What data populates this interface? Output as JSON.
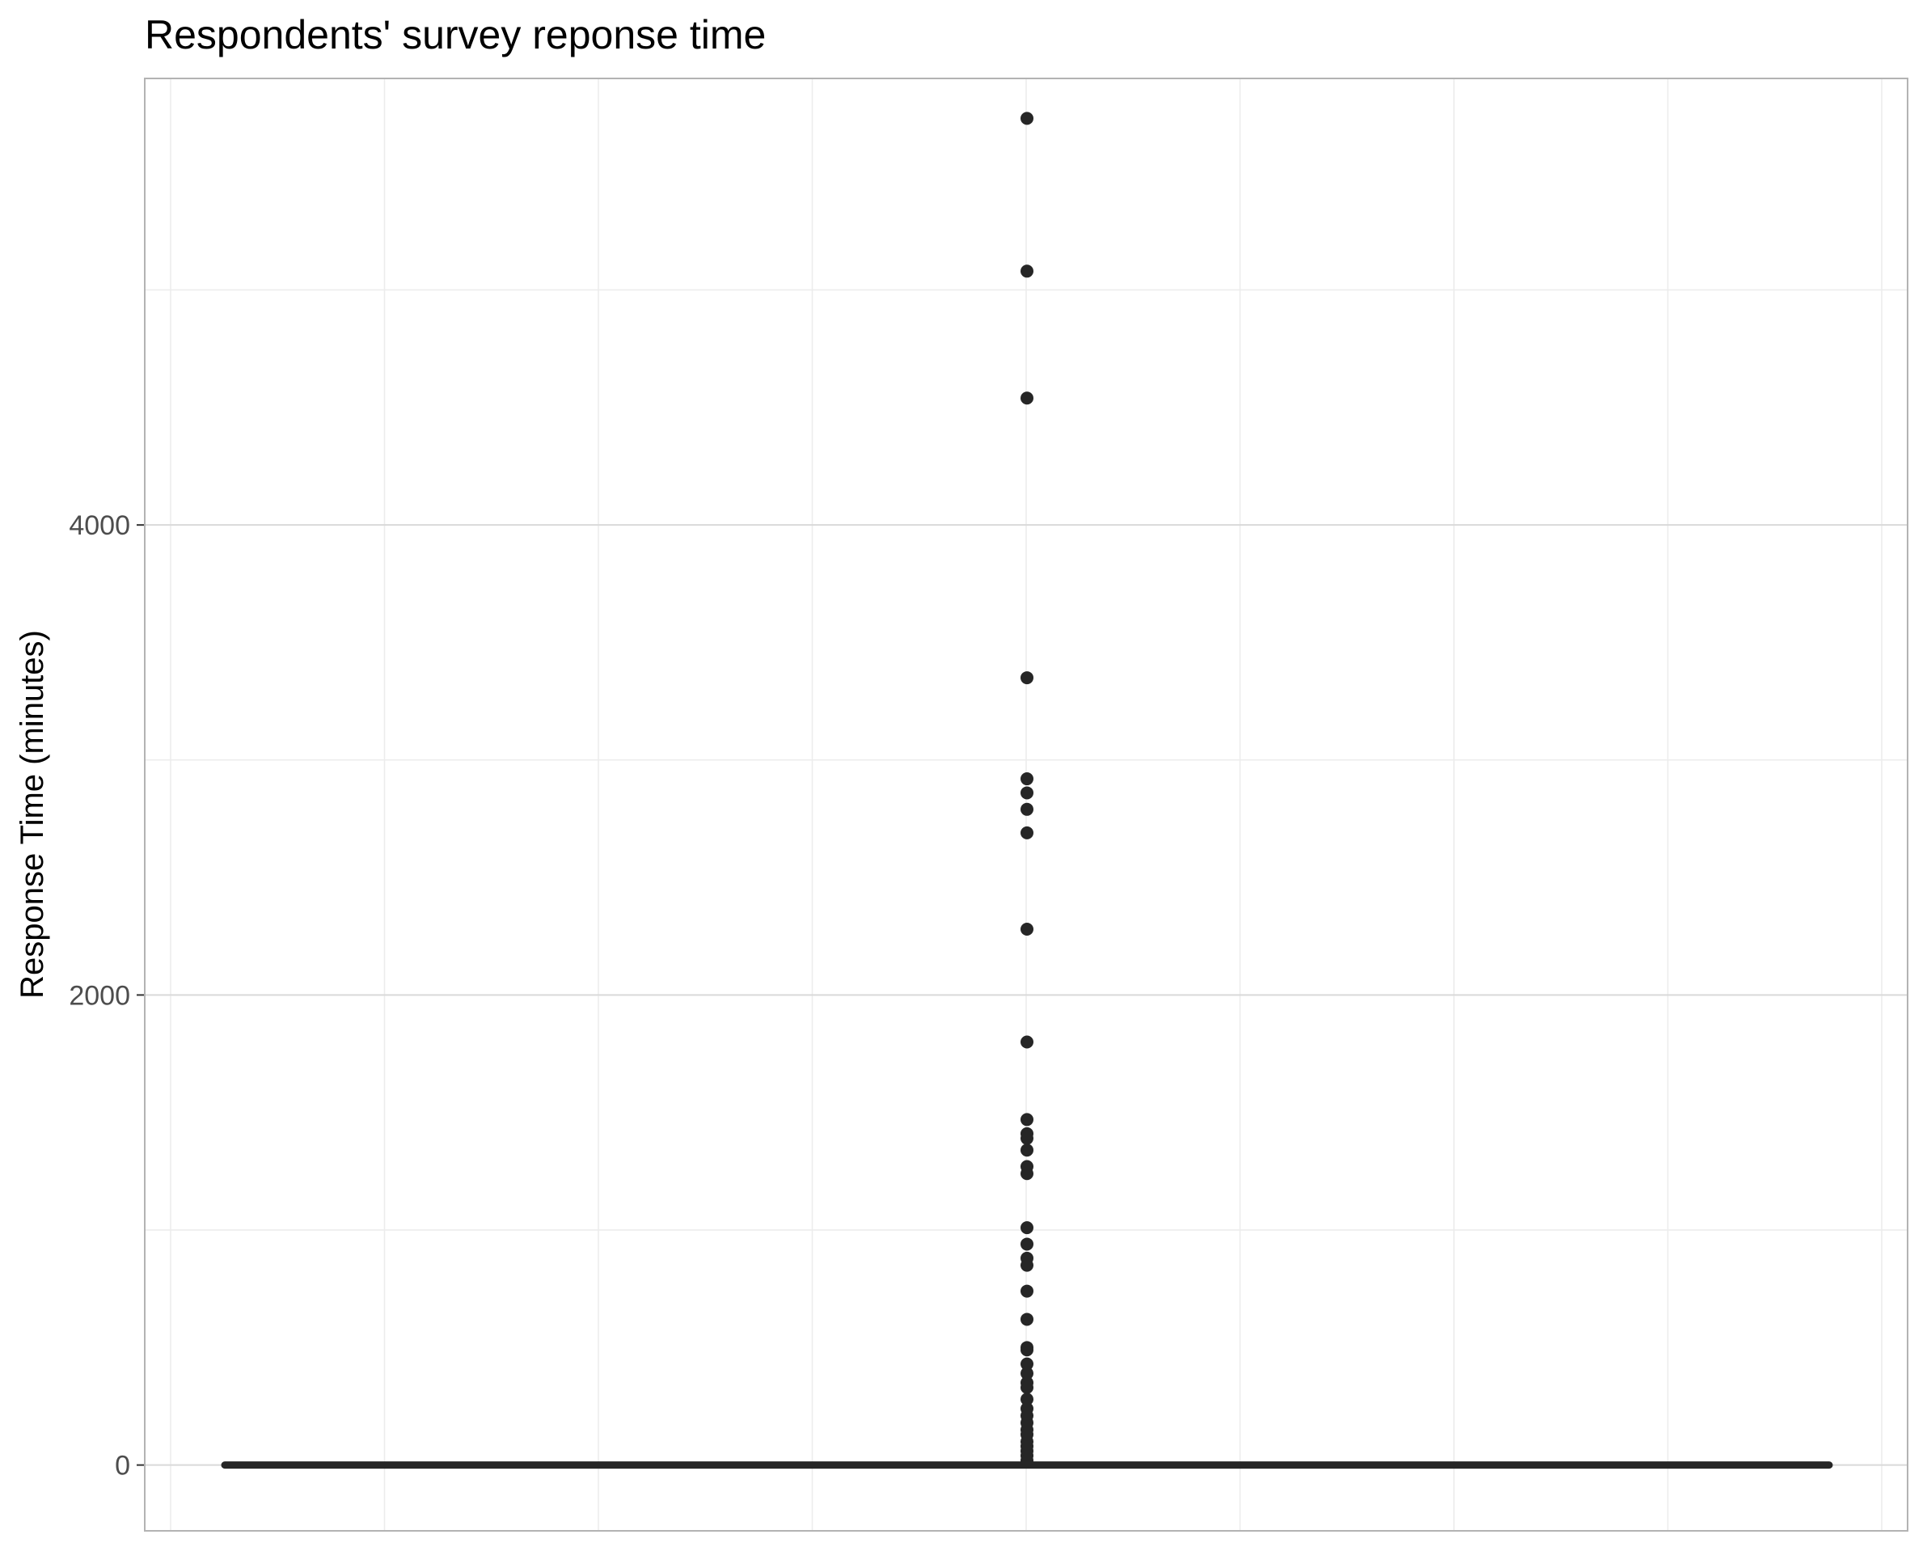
{
  "chart_data": {
    "type": "box",
    "title": "Respondents' survey reponse time",
    "xlabel": "",
    "ylabel": "Response Time (minutes)",
    "ylim": [
      -280,
      5900
    ],
    "y_ticks": [
      {
        "value": 0,
        "label": "0"
      },
      {
        "value": 2000,
        "label": "2000"
      },
      {
        "value": 4000,
        "label": "4000"
      }
    ],
    "y_minor_gridlines": [
      1000,
      3000,
      5000
    ],
    "grid": true,
    "colors": {
      "points": "#262626",
      "box": "#262626",
      "grid_major": "#d9d9d9",
      "grid_minor": "#ececec",
      "panel_border": "#b3b3b3"
    },
    "box": {
      "median": 0,
      "q1": 0,
      "q3": 0,
      "whisker_low": 0,
      "whisker_high": 0
    },
    "outliers": [
      5730,
      5080,
      4540,
      3350,
      2920,
      2860,
      2790,
      2690,
      2280,
      1800,
      1470,
      1410,
      1390,
      1340,
      1270,
      1240,
      1010,
      940,
      880,
      850,
      740,
      620,
      500,
      490,
      430,
      390,
      350,
      330,
      280,
      240,
      210,
      180,
      150,
      130,
      100,
      80,
      60,
      40,
      20
    ]
  }
}
